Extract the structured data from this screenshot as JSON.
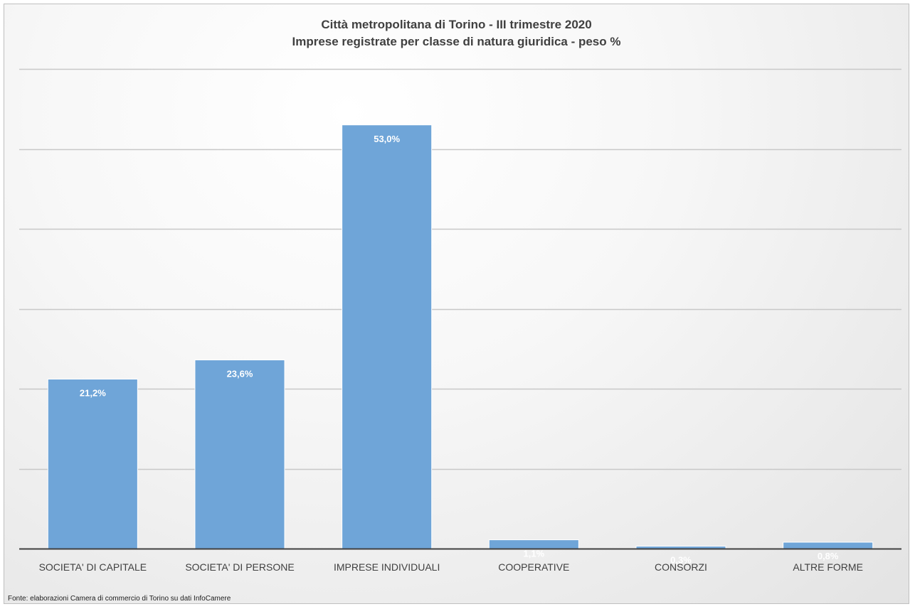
{
  "chart_data": {
    "type": "bar",
    "title": "Città metropolitana di Torino - III trimestre 2020",
    "subtitle": "Imprese registrate per classe di natura giuridica - peso %",
    "categories": [
      "SOCIETA' DI CAPITALE",
      "SOCIETA' DI PERSONE",
      "IMPRESE INDIVIDUALI",
      "COOPERATIVE",
      "CONSORZI",
      "ALTRE FORME"
    ],
    "values": [
      21.2,
      23.6,
      53.0,
      1.1,
      0.3,
      0.8
    ],
    "data_labels": [
      "21,2%",
      "23,6%",
      "53,0%",
      "1,1%",
      "0,3%",
      "0,8%"
    ],
    "ylim": [
      0,
      60
    ],
    "grid": true,
    "colors": {
      "bar": "#6fa5d8",
      "label": "#ffffff",
      "grid": "#c8c8c8",
      "axis": "#404040"
    }
  },
  "source": "Fonte: elaborazioni Camera di commercio di Torino su dati InfoCamere"
}
